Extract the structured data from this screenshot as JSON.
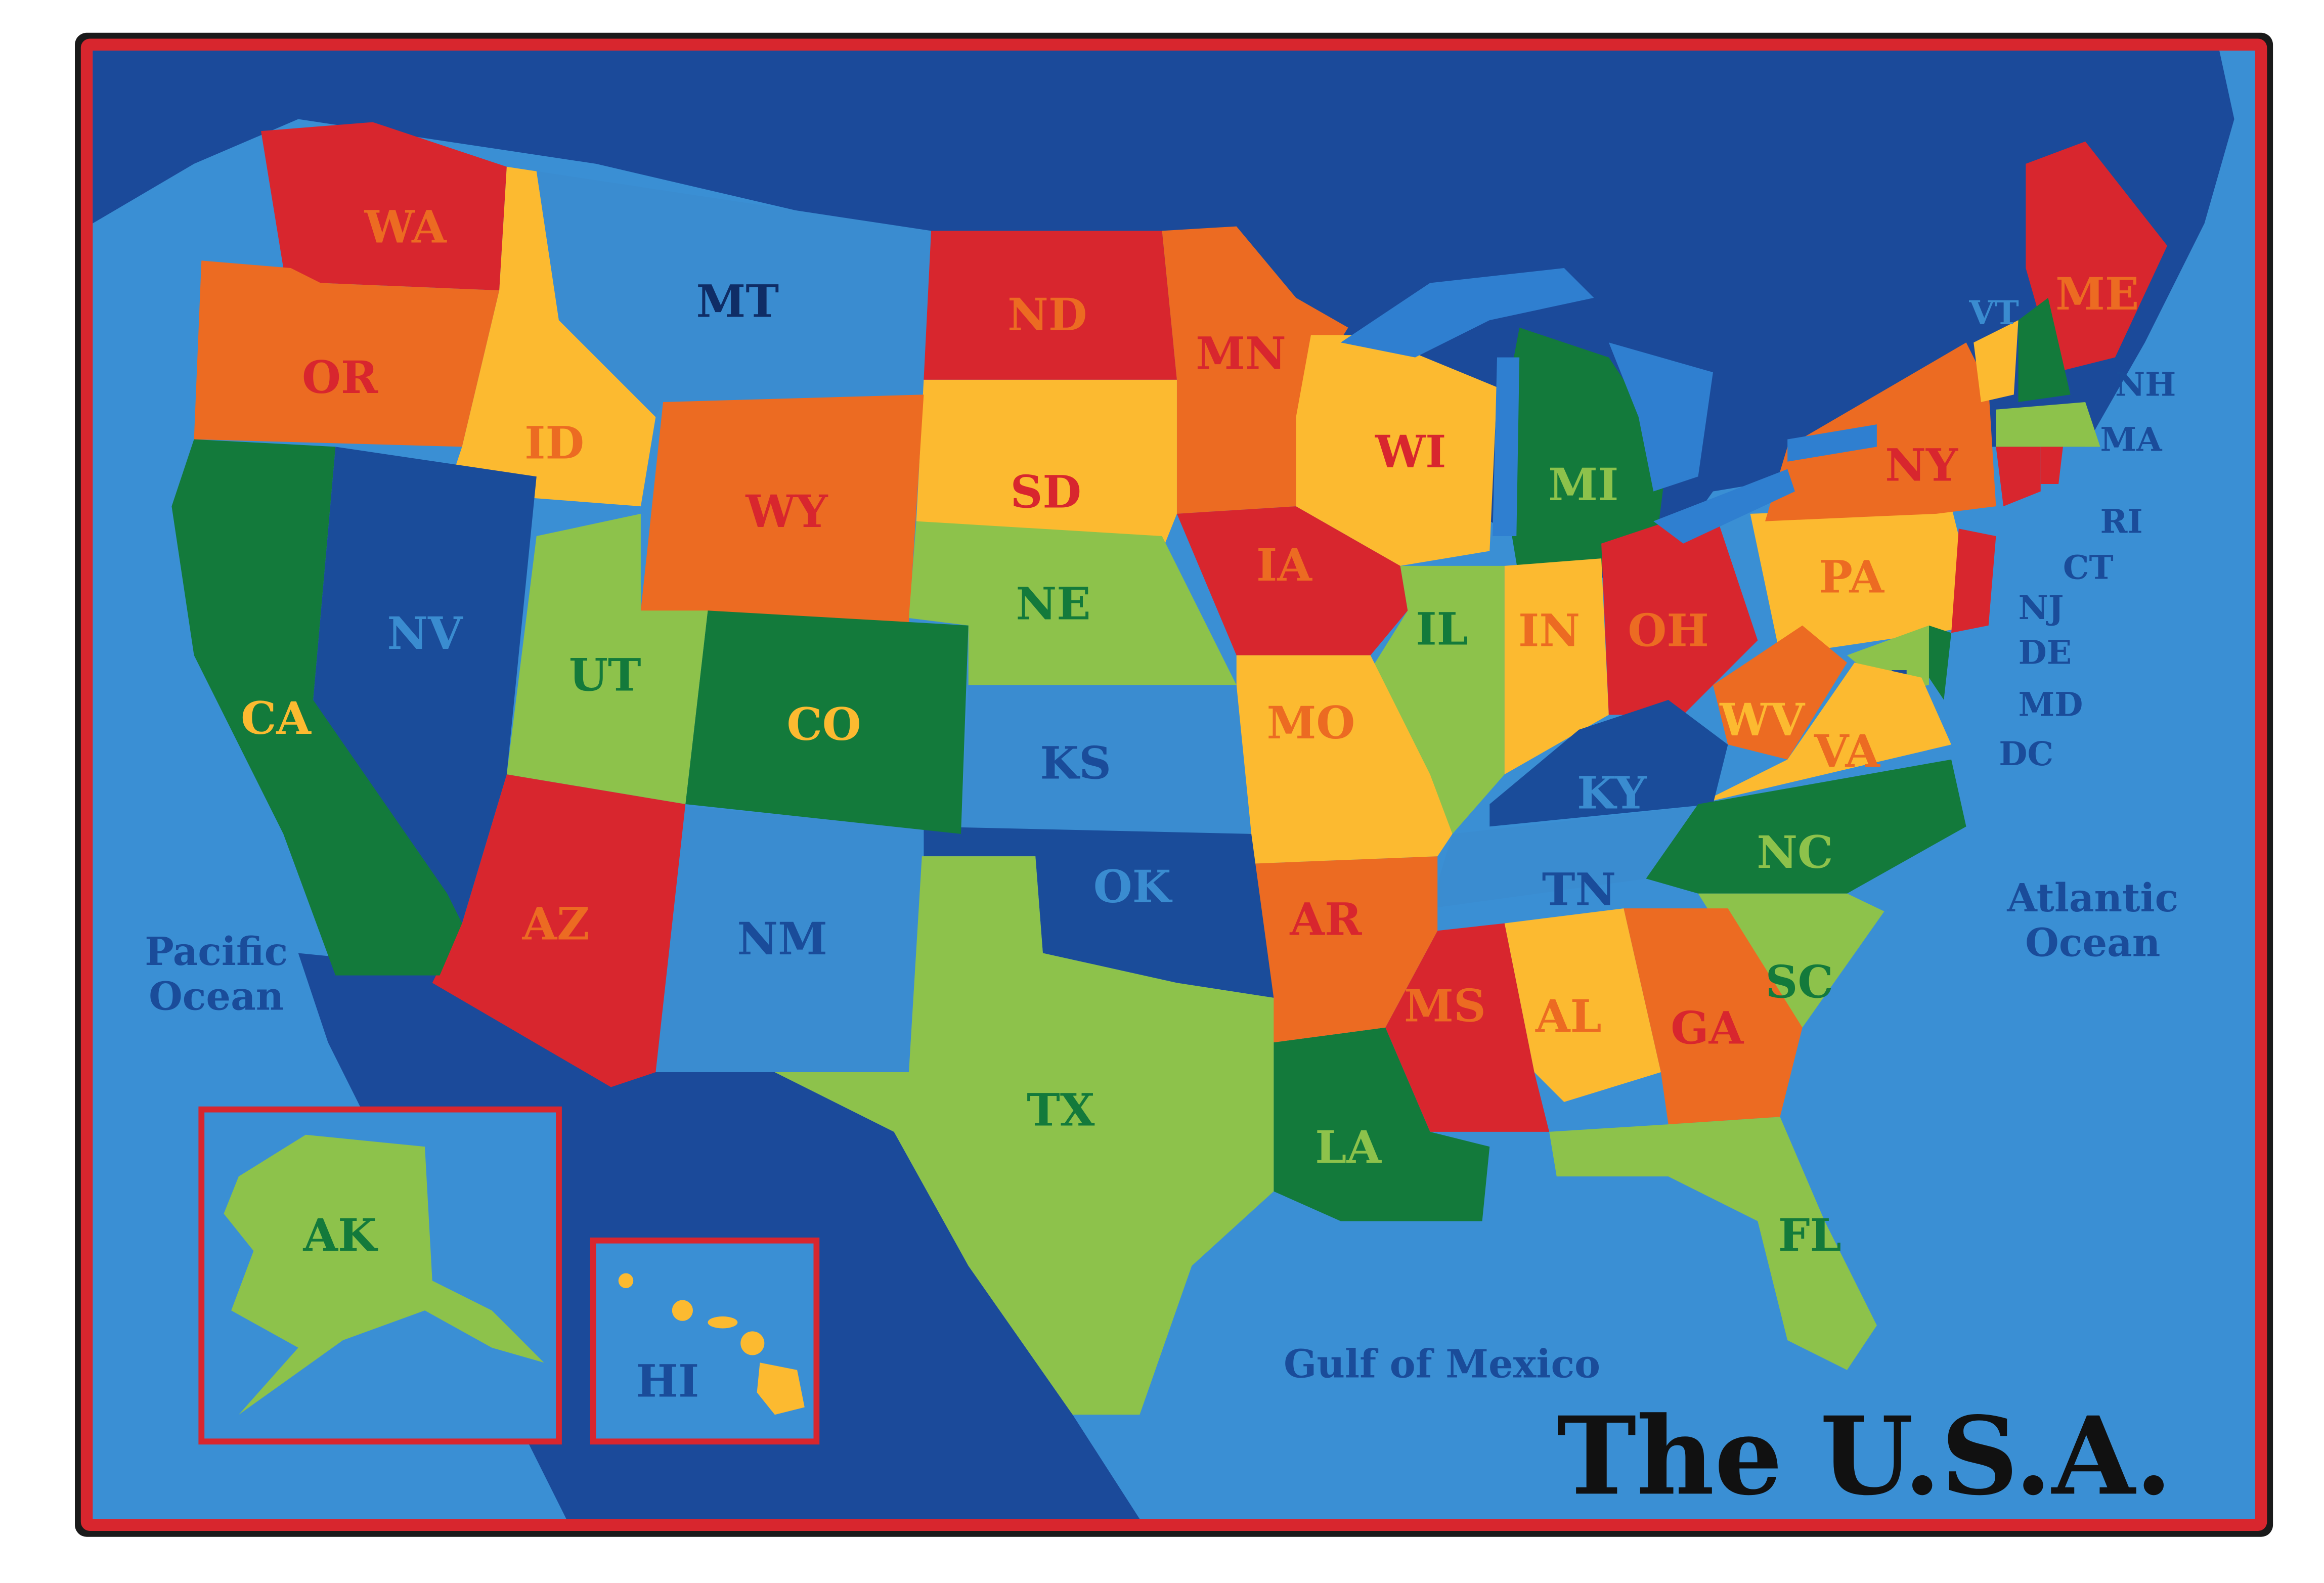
{
  "title": "The U.S.A.",
  "colors": {
    "ocean": "#3a8fd4",
    "land_dark": "#1b4a9a",
    "border_red": "#d8262e",
    "border_black": "#1a1a1a",
    "lake": "#2f7fd0"
  },
  "water_labels": {
    "pacific_1": "Pacific",
    "pacific_2": "Ocean",
    "atlantic_1": "Atlantic",
    "atlantic_2": "Ocean",
    "gulf": "Gulf of Mexico"
  },
  "states": [
    {
      "abbr": "WA",
      "fill": "#d8262e",
      "label_color": "#ec6b22"
    },
    {
      "abbr": "OR",
      "fill": "#ec6b22",
      "label_color": "#d8262e"
    },
    {
      "abbr": "ID",
      "fill": "#fcba30",
      "label_color": "#ec6b22"
    },
    {
      "abbr": "MT",
      "fill": "#3a8cd0",
      "label_color": "#0f2d66"
    },
    {
      "abbr": "ND",
      "fill": "#d8262e",
      "label_color": "#ec6b22"
    },
    {
      "abbr": "MN",
      "fill": "#ec6b22",
      "label_color": "#d8262e"
    },
    {
      "abbr": "SD",
      "fill": "#fcba30",
      "label_color": "#d8262e"
    },
    {
      "abbr": "WY",
      "fill": "#ec6b22",
      "label_color": "#d8262e"
    },
    {
      "abbr": "NE",
      "fill": "#8dc24b",
      "label_color": "#137a3b"
    },
    {
      "abbr": "IA",
      "fill": "#d8262e",
      "label_color": "#ec6b22"
    },
    {
      "abbr": "WI",
      "fill": "#fcba30",
      "label_color": "#d8262e"
    },
    {
      "abbr": "MI",
      "fill": "#137a3b",
      "label_color": "#8dc24b"
    },
    {
      "abbr": "IL",
      "fill": "#8dc24b",
      "label_color": "#137a3b"
    },
    {
      "abbr": "IN",
      "fill": "#fcba30",
      "label_color": "#ec6b22"
    },
    {
      "abbr": "OH",
      "fill": "#d8262e",
      "label_color": "#ec6b22"
    },
    {
      "abbr": "PA",
      "fill": "#fcba30",
      "label_color": "#ec6b22"
    },
    {
      "abbr": "NY",
      "fill": "#ec6b22",
      "label_color": "#d8262e"
    },
    {
      "abbr": "ME",
      "fill": "#d8262e",
      "label_color": "#ec6b22"
    },
    {
      "abbr": "VT",
      "fill": "#fcba30",
      "label_color": "#3a8cd0"
    },
    {
      "abbr": "NH",
      "fill": "#137a3b",
      "label_color": "#1a4c9a"
    },
    {
      "abbr": "MA",
      "fill": "#8dc24b",
      "label_color": "#1a4c9a"
    },
    {
      "abbr": "RI",
      "fill": "#d8262e",
      "label_color": "#1a4c9a"
    },
    {
      "abbr": "CT",
      "fill": "#d8262e",
      "label_color": "#1a4c9a"
    },
    {
      "abbr": "NJ",
      "fill": "#d8262e",
      "label_color": "#1a4c9a"
    },
    {
      "abbr": "DE",
      "fill": "#137a3b",
      "label_color": "#1a4c9a"
    },
    {
      "abbr": "MD",
      "fill": "#8dc24b",
      "label_color": "#1a4c9a"
    },
    {
      "abbr": "DC",
      "fill": "#1a4c9a",
      "label_color": "#1a4c9a"
    },
    {
      "abbr": "WV",
      "fill": "#ec6b22",
      "label_color": "#fcba30"
    },
    {
      "abbr": "VA",
      "fill": "#fcba30",
      "label_color": "#ec6b22"
    },
    {
      "abbr": "KY",
      "fill": "#1a4c9a",
      "label_color": "#3a8cd0"
    },
    {
      "abbr": "TN",
      "fill": "#3a8cd0",
      "label_color": "#1a4c9a"
    },
    {
      "abbr": "NC",
      "fill": "#137a3b",
      "label_color": "#8dc24b"
    },
    {
      "abbr": "SC",
      "fill": "#8dc24b",
      "label_color": "#137a3b"
    },
    {
      "abbr": "GA",
      "fill": "#ec6b22",
      "label_color": "#d8262e"
    },
    {
      "abbr": "AL",
      "fill": "#fcba30",
      "label_color": "#ec6b22"
    },
    {
      "abbr": "MS",
      "fill": "#d8262e",
      "label_color": "#ec6b22"
    },
    {
      "abbr": "FL",
      "fill": "#8dc24b",
      "label_color": "#137a3b"
    },
    {
      "abbr": "LA",
      "fill": "#137a3b",
      "label_color": "#8dc24b"
    },
    {
      "abbr": "AR",
      "fill": "#ec6b22",
      "label_color": "#d8262e"
    },
    {
      "abbr": "MO",
      "fill": "#fcba30",
      "label_color": "#ec6b22"
    },
    {
      "abbr": "KS",
      "fill": "#3a8cd0",
      "label_color": "#1a4c9a"
    },
    {
      "abbr": "OK",
      "fill": "#1a4c9a",
      "label_color": "#3a8cd0"
    },
    {
      "abbr": "TX",
      "fill": "#8dc24b",
      "label_color": "#137a3b"
    },
    {
      "abbr": "NM",
      "fill": "#3a8cd0",
      "label_color": "#1a4c9a"
    },
    {
      "abbr": "CO",
      "fill": "#137a3b",
      "label_color": "#fcba30"
    },
    {
      "abbr": "UT",
      "fill": "#8dc24b",
      "label_color": "#137a3b"
    },
    {
      "abbr": "AZ",
      "fill": "#d8262e",
      "label_color": "#ec6b22"
    },
    {
      "abbr": "NV",
      "fill": "#1a4c9a",
      "label_color": "#3a8cd0"
    },
    {
      "abbr": "CA",
      "fill": "#137a3b",
      "label_color": "#fcba30"
    },
    {
      "abbr": "AK",
      "fill": "#8dc24b",
      "label_color": "#137a3b"
    },
    {
      "abbr": "HI",
      "fill": "#fcba30",
      "label_color": "#1a4c9a"
    }
  ]
}
